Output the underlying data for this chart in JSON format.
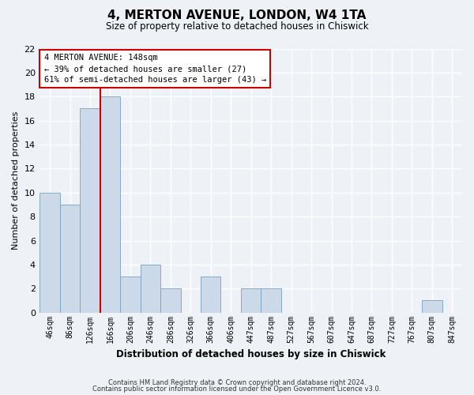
{
  "title": "4, MERTON AVENUE, LONDON, W4 1TA",
  "subtitle": "Size of property relative to detached houses in Chiswick",
  "xlabel": "Distribution of detached houses by size in Chiswick",
  "ylabel": "Number of detached properties",
  "bar_labels": [
    "46sqm",
    "86sqm",
    "126sqm",
    "166sqm",
    "206sqm",
    "246sqm",
    "286sqm",
    "326sqm",
    "366sqm",
    "406sqm",
    "447sqm",
    "487sqm",
    "527sqm",
    "567sqm",
    "607sqm",
    "647sqm",
    "687sqm",
    "727sqm",
    "767sqm",
    "807sqm",
    "847sqm"
  ],
  "bar_values": [
    10,
    9,
    17,
    18,
    3,
    4,
    2,
    0,
    3,
    0,
    2,
    2,
    0,
    0,
    0,
    0,
    0,
    0,
    0,
    1,
    0
  ],
  "bar_color": "#ccd9e8",
  "bar_edge_color": "#7aa0c0",
  "vline_color": "#cc0000",
  "vline_x": 2.5,
  "annotation_line1": "4 MERTON AVENUE: 148sqm",
  "annotation_line2": "← 39% of detached houses are smaller (27)",
  "annotation_line3": "61% of semi-detached houses are larger (43) →",
  "annotation_box_color": "white",
  "annotation_box_edge": "#cc0000",
  "ylim": [
    0,
    22
  ],
  "yticks": [
    0,
    2,
    4,
    6,
    8,
    10,
    12,
    14,
    16,
    18,
    20,
    22
  ],
  "footer_line1": "Contains HM Land Registry data © Crown copyright and database right 2024.",
  "footer_line2": "Contains public sector information licensed under the Open Government Licence v3.0.",
  "background_color": "#eef2f7",
  "grid_color": "white",
  "plot_bg": "white"
}
